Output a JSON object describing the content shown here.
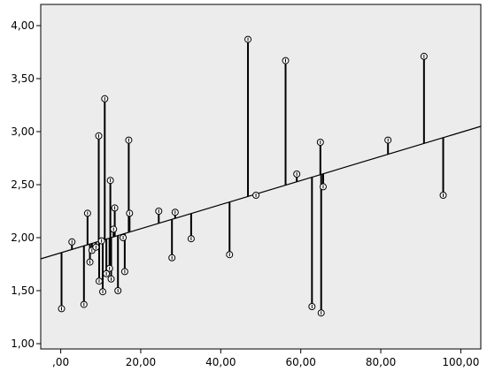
{
  "chart_data": {
    "type": "scatter",
    "x_axis": {
      "range": [
        -5,
        105
      ],
      "ticks": [
        0,
        20,
        40,
        60,
        80,
        100
      ],
      "tick_labels": [
        ",00",
        "20,00",
        "40,00",
        "60,00",
        "80,00",
        "100,00"
      ]
    },
    "y_axis": {
      "range": [
        0.95,
        4.2
      ],
      "ticks": [
        1.0,
        1.5,
        2.0,
        2.5,
        3.0,
        3.5,
        4.0
      ],
      "tick_labels": [
        "1,00",
        "1,50",
        "2,00",
        "2,50",
        "3,00",
        "3,50",
        "4,00"
      ]
    },
    "grid": false,
    "fit_line": {
      "x": [
        -5,
        105
      ],
      "y": [
        1.8,
        3.05
      ]
    },
    "points": [
      {
        "x": 0.2,
        "y": 1.33
      },
      {
        "x": 2.8,
        "y": 1.96
      },
      {
        "x": 5.8,
        "y": 1.37
      },
      {
        "x": 6.7,
        "y": 2.23
      },
      {
        "x": 7.3,
        "y": 1.77
      },
      {
        "x": 7.8,
        "y": 1.88
      },
      {
        "x": 8.8,
        "y": 1.91
      },
      {
        "x": 9.5,
        "y": 2.96
      },
      {
        "x": 9.6,
        "y": 1.59
      },
      {
        "x": 10.2,
        "y": 1.97
      },
      {
        "x": 10.5,
        "y": 1.49
      },
      {
        "x": 11.0,
        "y": 3.31
      },
      {
        "x": 11.4,
        "y": 1.66
      },
      {
        "x": 12.2,
        "y": 1.71
      },
      {
        "x": 12.4,
        "y": 2.54
      },
      {
        "x": 12.6,
        "y": 1.61
      },
      {
        "x": 13.2,
        "y": 2.08
      },
      {
        "x": 13.5,
        "y": 2.28
      },
      {
        "x": 14.3,
        "y": 1.5
      },
      {
        "x": 15.6,
        "y": 2.0
      },
      {
        "x": 16.0,
        "y": 1.68
      },
      {
        "x": 17.0,
        "y": 2.92
      },
      {
        "x": 17.2,
        "y": 2.23
      },
      {
        "x": 24.5,
        "y": 2.25
      },
      {
        "x": 27.8,
        "y": 1.81
      },
      {
        "x": 28.6,
        "y": 2.24
      },
      {
        "x": 32.6,
        "y": 1.99
      },
      {
        "x": 42.2,
        "y": 1.84
      },
      {
        "x": 46.8,
        "y": 3.87
      },
      {
        "x": 48.8,
        "y": 2.4
      },
      {
        "x": 56.2,
        "y": 3.67
      },
      {
        "x": 59.0,
        "y": 2.6
      },
      {
        "x": 62.8,
        "y": 1.35
      },
      {
        "x": 64.9,
        "y": 2.9
      },
      {
        "x": 65.1,
        "y": 1.29
      },
      {
        "x": 65.6,
        "y": 2.48
      },
      {
        "x": 81.8,
        "y": 2.92
      },
      {
        "x": 90.8,
        "y": 3.71
      },
      {
        "x": 95.6,
        "y": 2.4
      }
    ]
  }
}
